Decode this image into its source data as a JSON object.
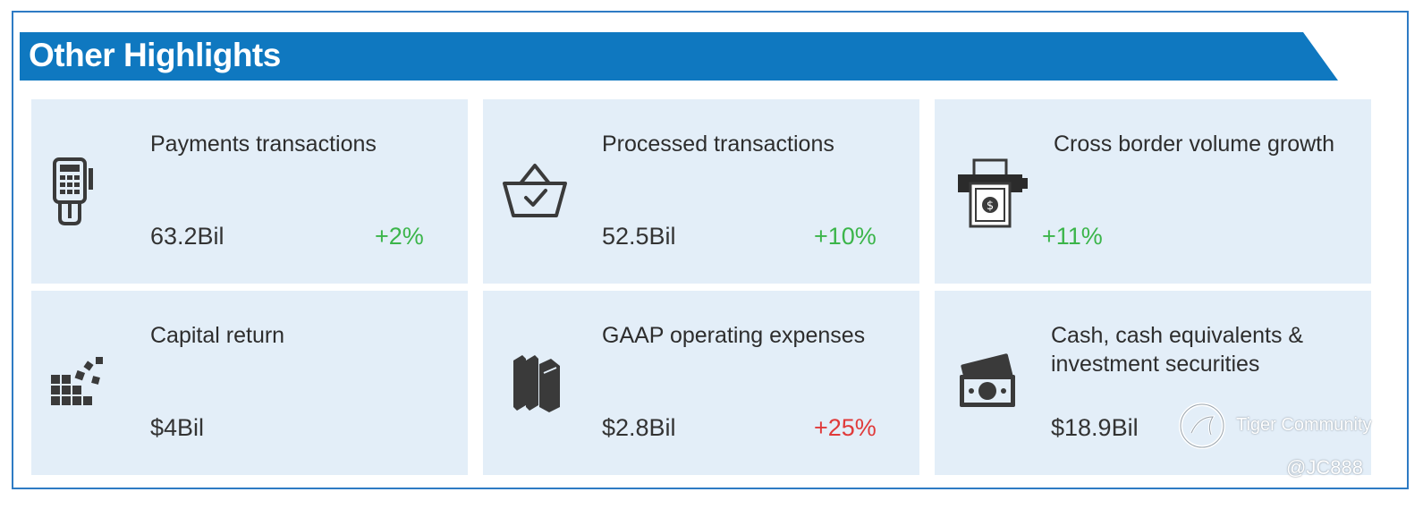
{
  "header": {
    "title": "Other Highlights"
  },
  "cards": [
    {
      "title": "Payments transactions",
      "value": "63.2Bil",
      "change": "+2%",
      "icon": "payment-terminal-icon"
    },
    {
      "title": "Processed transactions",
      "value": "52.5Bil",
      "change": "+10%",
      "icon": "basket-check-icon"
    },
    {
      "title": "Cross border volume growth",
      "value": "",
      "change": "+11%",
      "icon": "money-printer-icon"
    },
    {
      "title": "Capital return",
      "value": "$4Bil",
      "change": "",
      "icon": "blocks-icon"
    },
    {
      "title": "GAAP operating expenses",
      "value": "$2.8Bil",
      "change": "+25%",
      "icon": "books-icon"
    },
    {
      "title_line1": "Cash, cash equivalents &",
      "title_line2": "investment securities",
      "value": "$18.9Bil",
      "change": "",
      "icon": "cash-stack-icon"
    }
  ],
  "watermark": {
    "brand": "Tiger Community",
    "handle": "@JC888"
  },
  "colors": {
    "banner": "#0f78c0",
    "card_bg": "#e3eef8",
    "positive": "#3bb54a",
    "negative": "#e03a3a",
    "border": "#2e7bc4"
  }
}
